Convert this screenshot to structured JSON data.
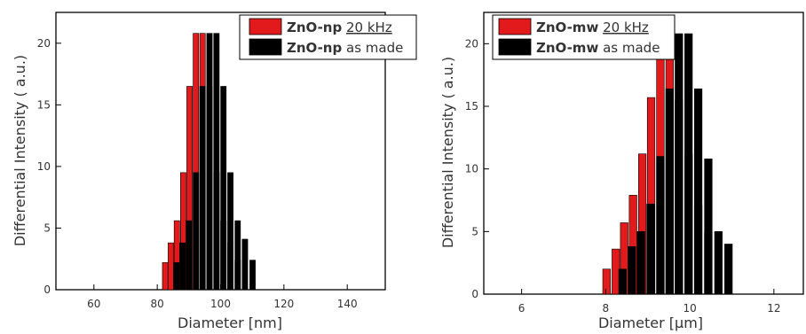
{
  "chart_data": [
    {
      "type": "bar",
      "xlabel": "Diameter [nm]",
      "ylabel": "Differential Intensity ( a.u.)",
      "xlim": [
        48,
        152
      ],
      "ylim": [
        0,
        22.5
      ],
      "xticks": [
        "60",
        "80",
        "100",
        "120",
        "140"
      ],
      "xtick_values": [
        60,
        80,
        100,
        120,
        140
      ],
      "yticks": [
        "0",
        "5",
        "10",
        "15",
        "20"
      ],
      "ytick_values": [
        0,
        5,
        10,
        15,
        20
      ],
      "legend_position": "top-right",
      "series": [
        {
          "name_bold": "ZnO-np",
          "name_rest": "20 kHz",
          "name_rest_underline": true,
          "color": "#e31a1c",
          "x": [
            82.5,
            84.3,
            86.2,
            88.2,
            90.2,
            92.2,
            94.3,
            96.5,
            98.7,
            100.9,
            103.1,
            105.4
          ],
          "values": [
            2.2,
            3.8,
            5.6,
            9.5,
            16.5,
            20.8,
            20.8,
            16.5,
            9.5,
            5.6,
            3.8,
            2.4
          ]
        },
        {
          "name_bold": "ZnO-np",
          "name_rest": "as made",
          "name_rest_underline": false,
          "color": "#000000",
          "x": [
            86.0,
            88.0,
            90.0,
            92.2,
            94.3,
            96.5,
            98.7,
            100.9,
            103.1,
            105.4,
            107.7,
            110.1
          ],
          "values": [
            2.2,
            3.8,
            5.6,
            9.5,
            16.5,
            20.8,
            20.8,
            16.5,
            9.5,
            5.6,
            4.1,
            2.4
          ]
        }
      ]
    },
    {
      "type": "bar",
      "xlabel": "Diameter [µm]",
      "ylabel": "Differential Intensity ( a.u.)",
      "xlim": [
        5.1,
        12.7
      ],
      "ylim": [
        0,
        22.5
      ],
      "xticks": [
        "6",
        "8",
        "10",
        "12"
      ],
      "xtick_values": [
        6,
        8,
        10,
        12
      ],
      "yticks": [
        "0",
        "5",
        "10",
        "15",
        "20"
      ],
      "ytick_values": [
        0,
        5,
        10,
        15,
        20
      ],
      "legend_position": "top-right",
      "series": [
        {
          "name_bold": "ZnO-mw",
          "name_rest": "20 kHz",
          "name_rest_underline": true,
          "color": "#e31a1c",
          "x": [
            8.02,
            8.24,
            8.44,
            8.65,
            8.87,
            9.08,
            9.3,
            9.52,
            9.74,
            9.97,
            10.2,
            10.44
          ],
          "values": [
            2.0,
            3.6,
            5.7,
            7.9,
            11.2,
            15.7,
            18.8,
            18.8,
            15.5,
            11.2,
            7.1,
            4.9
          ]
        },
        {
          "name_bold": "ZnO-mw",
          "name_rest": "as made",
          "name_rest_underline": false,
          "color": "#000000",
          "x": [
            8.4,
            8.62,
            8.84,
            9.07,
            9.3,
            9.52,
            9.74,
            9.97,
            10.2,
            10.44,
            10.68,
            10.92
          ],
          "values": [
            2.0,
            3.8,
            5.0,
            7.2,
            11.0,
            16.4,
            20.8,
            20.8,
            16.4,
            10.8,
            5.0,
            4.0
          ]
        }
      ]
    }
  ]
}
